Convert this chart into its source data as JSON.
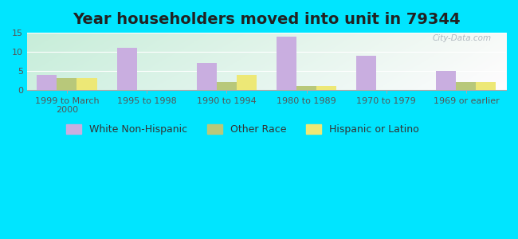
{
  "title": "Year householders moved into unit in 79344",
  "categories": [
    "1999 to March\n2000",
    "1995 to 1998",
    "1990 to 1994",
    "1980 to 1989",
    "1970 to 1979",
    "1969 or earlier"
  ],
  "white_non_hispanic": [
    4,
    11,
    7,
    14,
    9,
    5
  ],
  "other_race": [
    3,
    0,
    2,
    1,
    0,
    2
  ],
  "hispanic_or_latino": [
    3,
    0,
    4,
    1,
    0,
    2
  ],
  "color_white": "#c9aee0",
  "color_other": "#b8c87a",
  "color_hispanic": "#ede876",
  "background_outer": "#00e5ff",
  "ylim": [
    0,
    15
  ],
  "yticks": [
    0,
    5,
    10,
    15
  ],
  "bar_width": 0.25,
  "title_fontsize": 14,
  "tick_fontsize": 8,
  "legend_fontsize": 9
}
